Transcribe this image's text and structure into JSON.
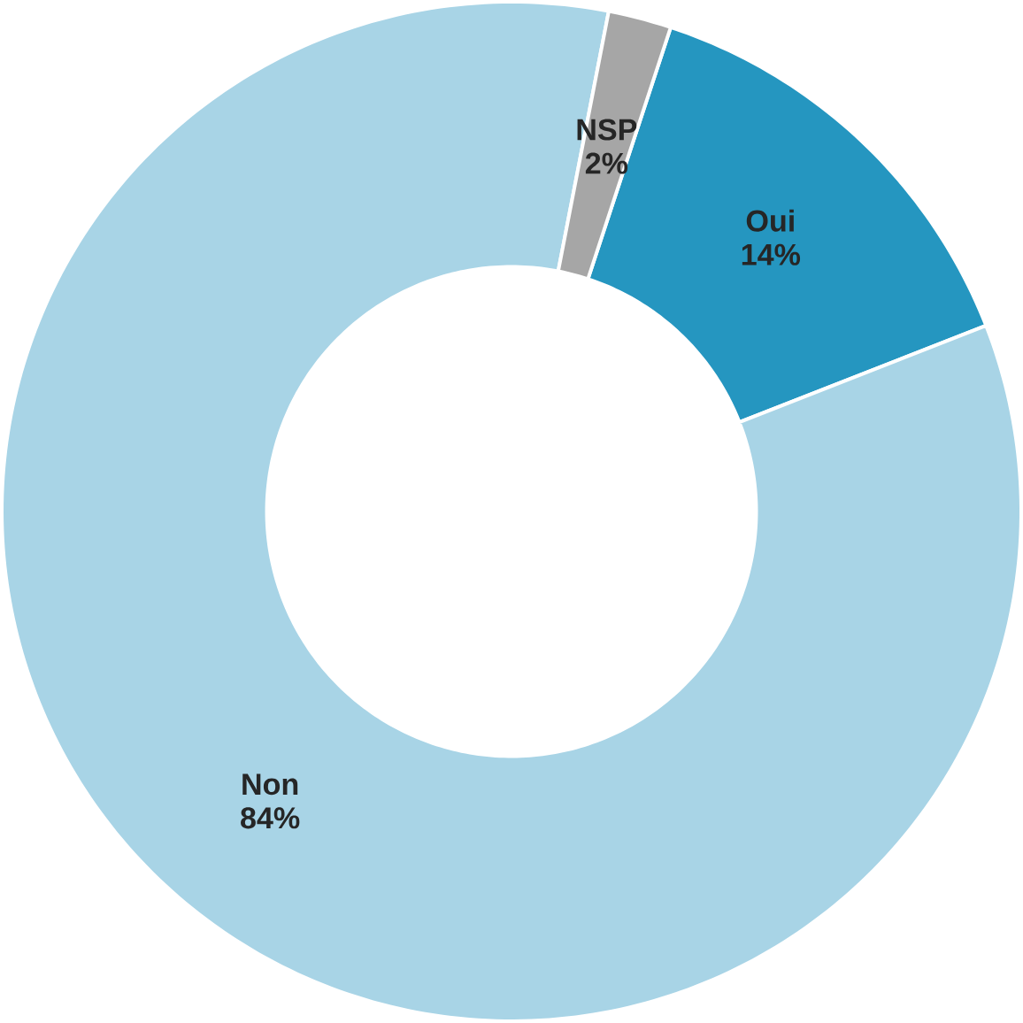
{
  "chart_data": {
    "type": "donut",
    "categories": [
      "Oui",
      "Non",
      "NSP"
    ],
    "values": [
      14,
      84,
      2
    ],
    "colors": [
      "#2596c0",
      "#a8d4e6",
      "#a6a6a6"
    ],
    "value_labels": [
      "14%",
      "84%",
      "2%"
    ]
  }
}
